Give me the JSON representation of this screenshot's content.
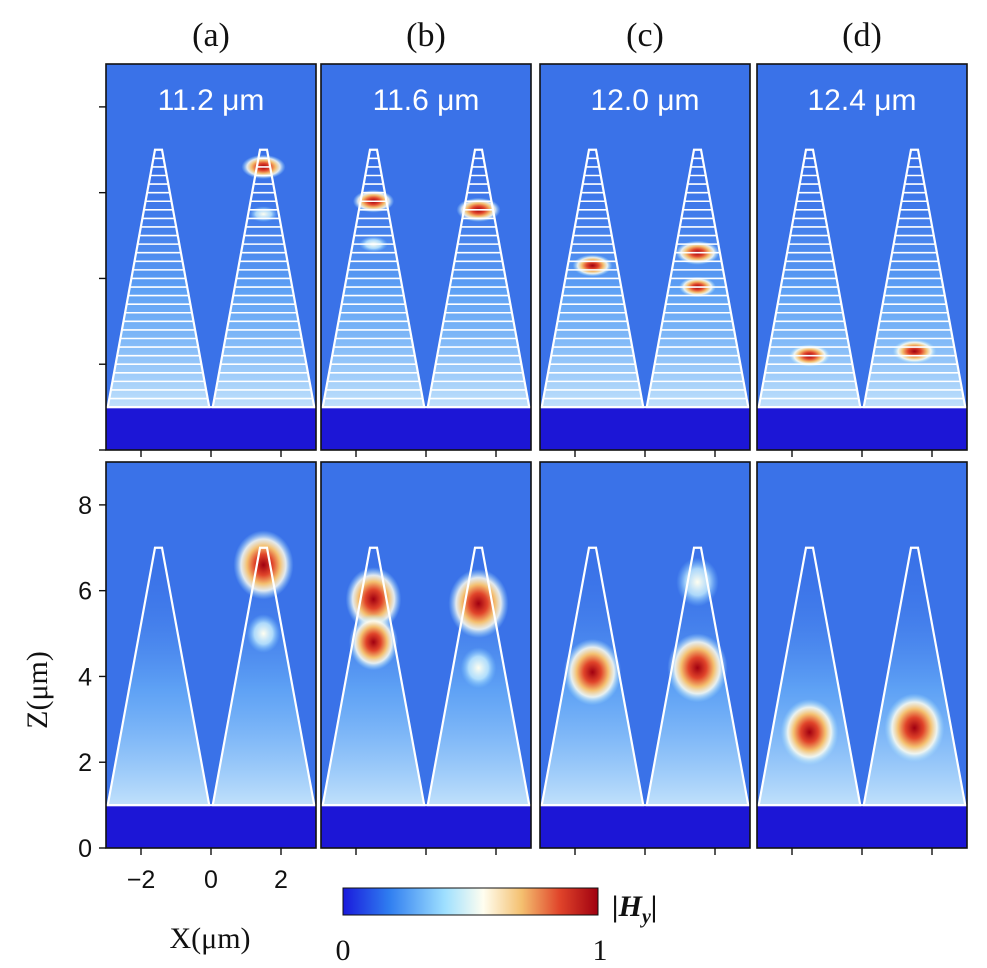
{
  "figure": {
    "panel_letters": [
      "(a)",
      "(b)",
      "(c)",
      "(d)"
    ],
    "wavelengths": [
      "11.2 μm",
      "11.6 μm",
      "12.0 μm",
      "12.4 μm"
    ],
    "colorbar": {
      "label": "|H_y|",
      "min_label": "0",
      "max_label": "1",
      "colors": [
        "#1a1adc",
        "#2f7df0",
        "#9fe0ff",
        "#fffef0",
        "#f4c070",
        "#e0442a",
        "#a00010"
      ]
    },
    "colors": {
      "background_field": "#3a72e8",
      "substrate": "#1c16d6",
      "outline": "#ffffff",
      "frame": "#111111"
    }
  },
  "chart_data": [
    {
      "type": "heatmap",
      "title": "",
      "xlabel": "X(μm)",
      "ylabel": "Z(μm)",
      "xlim": [
        -3,
        3
      ],
      "ylim": [
        0,
        9
      ],
      "x_ticks": [
        "−2",
        "0",
        "2"
      ],
      "y_ticks": [
        "0",
        "2",
        "4",
        "6",
        "8"
      ],
      "colorbar_range": [
        0,
        1
      ],
      "panels": [
        {
          "panel": "(a)",
          "wavelength": "11.2 μm",
          "row": "multilayer",
          "hotspots": [
            {
              "x": 1.5,
              "z": 6.6,
              "value": 1.0
            },
            {
              "x": 1.5,
              "z": 5.5,
              "value": 0.45
            }
          ]
        },
        {
          "panel": "(b)",
          "wavelength": "11.6 μm",
          "row": "multilayer",
          "hotspots": [
            {
              "x": -1.5,
              "z": 5.8,
              "value": 0.9
            },
            {
              "x": 1.5,
              "z": 5.6,
              "value": 1.0
            },
            {
              "x": -1.5,
              "z": 4.8,
              "value": 0.45
            }
          ]
        },
        {
          "panel": "(c)",
          "wavelength": "12.0 μm",
          "row": "multilayer",
          "hotspots": [
            {
              "x": -1.5,
              "z": 4.3,
              "value": 0.85
            },
            {
              "x": 1.5,
              "z": 4.6,
              "value": 1.0
            },
            {
              "x": 1.5,
              "z": 3.8,
              "value": 0.75
            }
          ]
        },
        {
          "panel": "(d)",
          "wavelength": "12.4 μm",
          "row": "multilayer",
          "hotspots": [
            {
              "x": -1.5,
              "z": 2.2,
              "value": 0.9
            },
            {
              "x": 1.5,
              "z": 2.3,
              "value": 1.0
            }
          ]
        },
        {
          "panel": "(a)",
          "row": "homogeneous",
          "hotspots": [
            {
              "x": 1.5,
              "z": 6.6,
              "value": 1.0
            },
            {
              "x": 1.5,
              "z": 5.0,
              "value": 0.4
            }
          ]
        },
        {
          "panel": "(b)",
          "row": "homogeneous",
          "hotspots": [
            {
              "x": -1.5,
              "z": 5.8,
              "value": 0.9
            },
            {
              "x": -1.5,
              "z": 4.8,
              "value": 0.75
            },
            {
              "x": 1.5,
              "z": 5.7,
              "value": 1.0
            },
            {
              "x": 1.5,
              "z": 4.2,
              "value": 0.45
            }
          ]
        },
        {
          "panel": "(c)",
          "row": "homogeneous",
          "hotspots": [
            {
              "x": -1.5,
              "z": 4.1,
              "value": 0.95
            },
            {
              "x": 1.5,
              "z": 4.2,
              "value": 1.0
            },
            {
              "x": 1.5,
              "z": 6.2,
              "value": 0.6
            }
          ]
        },
        {
          "panel": "(d)",
          "row": "homogeneous",
          "hotspots": [
            {
              "x": -1.5,
              "z": 2.7,
              "value": 0.95
            },
            {
              "x": 1.5,
              "z": 2.8,
              "value": 1.0
            }
          ]
        }
      ],
      "cones": {
        "bottom_z": 1.0,
        "top_z": 7.0,
        "centers_x": [
          -1.5,
          1.5
        ],
        "base_half_width": 1.45,
        "top_half_width": 0.1
      },
      "substrate_z": [
        0,
        1.0
      ]
    }
  ]
}
